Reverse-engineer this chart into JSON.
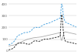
{
  "background_color": "#ffffff",
  "grid_color": "#cccccc",
  "ylim": [
    -20,
    420
  ],
  "xlim": [
    0,
    129
  ],
  "immigration": [
    52,
    54,
    56,
    58,
    60,
    63,
    65,
    68,
    72,
    76,
    80,
    85,
    92,
    100,
    108,
    116,
    122,
    127,
    131,
    134,
    136,
    138,
    140,
    142,
    144,
    146,
    148,
    150,
    152,
    154,
    156,
    157,
    158,
    158,
    158,
    158,
    158,
    159,
    160,
    162,
    164,
    167,
    170,
    174,
    178,
    183,
    188,
    192,
    196,
    199,
    201,
    202,
    202,
    201,
    200,
    199,
    199,
    199,
    200,
    202,
    204,
    207,
    210,
    213,
    216,
    219,
    222,
    224,
    226,
    228,
    229,
    230,
    232,
    233,
    234,
    235,
    237,
    238,
    240,
    242,
    244,
    246,
    248,
    250,
    252,
    254,
    256,
    258,
    260,
    262,
    264,
    266,
    268,
    270,
    272,
    274,
    276,
    278,
    280,
    310,
    370,
    400,
    390,
    355,
    310,
    285,
    268,
    255,
    248,
    244,
    241,
    239,
    237,
    235,
    233,
    231,
    229,
    227,
    225,
    223,
    221,
    219,
    217,
    215,
    213,
    211,
    209,
    207,
    205,
    203
  ],
  "emigration": [
    42,
    43,
    44,
    45,
    46,
    47,
    48,
    48,
    49,
    50,
    51,
    52,
    53,
    55,
    57,
    59,
    61,
    63,
    65,
    67,
    69,
    71,
    73,
    75,
    77,
    79,
    81,
    83,
    85,
    87,
    89,
    91,
    93,
    95,
    97,
    99,
    101,
    102,
    103,
    104,
    105,
    106,
    107,
    108,
    109,
    110,
    111,
    112,
    113,
    113,
    114,
    114,
    115,
    115,
    116,
    116,
    117,
    117,
    118,
    118,
    119,
    119,
    120,
    121,
    122,
    123,
    124,
    125,
    126,
    127,
    128,
    129,
    130,
    131,
    132,
    133,
    134,
    135,
    136,
    137,
    138,
    139,
    140,
    141,
    142,
    143,
    144,
    145,
    146,
    147,
    148,
    149,
    150,
    151,
    152,
    153,
    154,
    155,
    156,
    120,
    95,
    90,
    100,
    118,
    138,
    152,
    158,
    162,
    163,
    162,
    161,
    160,
    159,
    158,
    157,
    156,
    155,
    154,
    153,
    152,
    151,
    150,
    149,
    148,
    147,
    146,
    145,
    144,
    143,
    142
  ],
  "net_migration": [
    10,
    11,
    12,
    13,
    14,
    16,
    17,
    20,
    23,
    26,
    29,
    33,
    39,
    45,
    51,
    57,
    61,
    64,
    66,
    67,
    67,
    67,
    67,
    67,
    67,
    67,
    67,
    67,
    67,
    67,
    67,
    66,
    65,
    63,
    61,
    59,
    57,
    57,
    57,
    58,
    59,
    61,
    63,
    66,
    69,
    73,
    77,
    80,
    83,
    86,
    87,
    88,
    87,
    86,
    84,
    83,
    82,
    82,
    82,
    84,
    85,
    88,
    90,
    92,
    94,
    96,
    98,
    99,
    100,
    101,
    101,
    101,
    102,
    102,
    102,
    102,
    103,
    103,
    104,
    105,
    106,
    107,
    108,
    109,
    110,
    111,
    112,
    113,
    114,
    115,
    116,
    117,
    118,
    119,
    120,
    121,
    122,
    123,
    124,
    190,
    275,
    310,
    290,
    237,
    172,
    133,
    110,
    93,
    85,
    82,
    80,
    79,
    78,
    77,
    76,
    75,
    74,
    73,
    72,
    71,
    70,
    69,
    68,
    67,
    66,
    65,
    64,
    63,
    62,
    61
  ],
  "line_colors": {
    "immigration": "#4aa3df",
    "emigration": "#aaaaaa",
    "net_migration": "#222222"
  },
  "yticks": [
    0,
    100,
    200,
    300,
    400
  ],
  "ytick_labels": [
    "0",
    "100",
    "200",
    "300",
    "400"
  ]
}
